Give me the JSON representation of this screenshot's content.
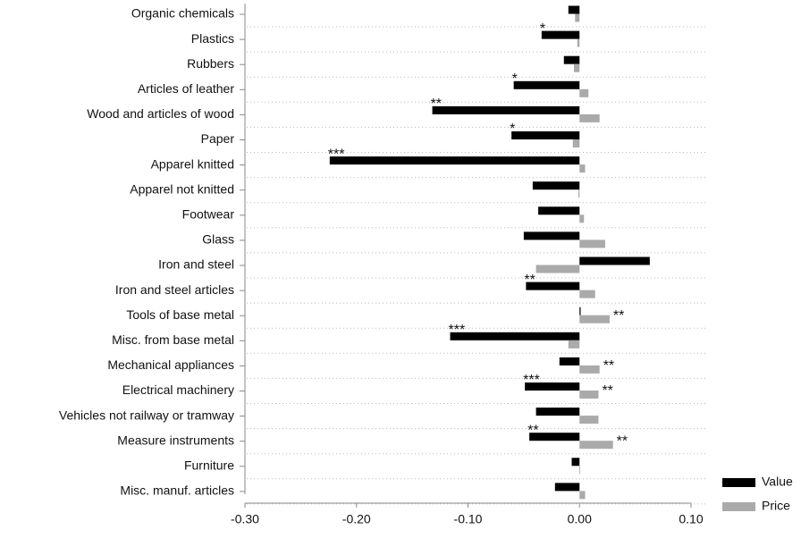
{
  "chart_data": {
    "type": "hbar",
    "categories": [
      "Organic chemicals",
      "Plastics",
      "Rubbers",
      "Articles of leather",
      "Wood and articles of wood",
      "Paper",
      "Apparel knitted",
      "Apparel not knitted",
      "Footwear",
      "Glass",
      "Iron and steel",
      "Iron and steel articles",
      "Tools of base metal",
      "Misc. from base metal",
      "Mechanical appliances",
      "Electrical machinery",
      "Vehicles not railway or tramway",
      "Measure instruments",
      "Furniture",
      "Misc. manuf. articles"
    ],
    "series": [
      {
        "name": "Value",
        "color": "#000000",
        "values": [
          -0.01,
          -0.034,
          -0.014,
          -0.059,
          -0.132,
          -0.061,
          -0.224,
          -0.042,
          -0.037,
          -0.05,
          0.063,
          -0.048,
          0.001,
          -0.116,
          -0.018,
          -0.049,
          -0.039,
          -0.045,
          -0.007,
          -0.022
        ],
        "significance": [
          null,
          "*",
          null,
          "*",
          "**",
          "*",
          "***",
          null,
          null,
          null,
          null,
          "**",
          null,
          "***",
          null,
          "***",
          null,
          "**",
          null,
          null
        ]
      },
      {
        "name": "Price",
        "color": "#aaaaaa",
        "values": [
          -0.004,
          -0.002,
          -0.005,
          0.008,
          0.018,
          -0.006,
          0.005,
          -0.001,
          0.004,
          0.023,
          -0.039,
          0.014,
          0.027,
          -0.01,
          0.018,
          0.017,
          0.017,
          0.03,
          0.0,
          0.005
        ],
        "significance": [
          null,
          null,
          null,
          null,
          null,
          null,
          null,
          null,
          null,
          null,
          null,
          null,
          "**",
          null,
          "**",
          "**",
          null,
          "**",
          null,
          null
        ]
      }
    ],
    "xlim": [
      -0.3,
      0.1
    ],
    "xticks": [
      {
        "value": -0.3,
        "label": "-0.30"
      },
      {
        "value": -0.2,
        "label": "-0.20"
      },
      {
        "value": -0.1,
        "label": "-0.10"
      },
      {
        "value": 0,
        "label": "0.00"
      },
      {
        "value": 0.1,
        "label": "0.10"
      }
    ],
    "grid": true,
    "legend": "bottom-right"
  }
}
